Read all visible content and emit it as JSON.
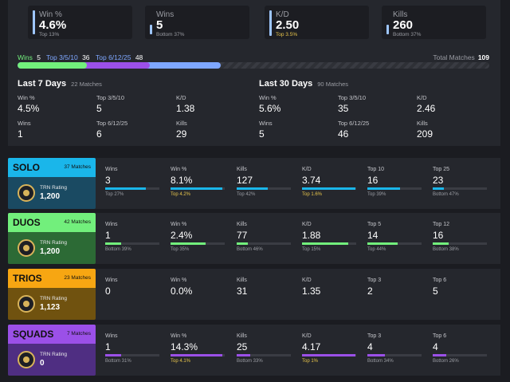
{
  "summary_cards": [
    {
      "label": "Win %",
      "value": "4.6%",
      "sub": "Top 13%"
    },
    {
      "label": "Wins",
      "value": "5",
      "sub": "Bottom 37%"
    },
    {
      "label": "K/D",
      "value": "2.50",
      "sub": "Top 3.5%"
    },
    {
      "label": "Kills",
      "value": "260",
      "sub": "Bottom 37%"
    }
  ],
  "progress": {
    "wins_label": "Wins",
    "wins_value": "5",
    "top3510_label": "Top 3/5/10",
    "top3510_value": "36",
    "top61225_label": "Top 6/12/25",
    "top61225_value": "48",
    "total_label": "Total Matches",
    "total_value": "109",
    "total": 109,
    "wins": 5,
    "top3510": 36,
    "top61225": 48
  },
  "last7": {
    "title": "Last 7 Days",
    "matches": "22 Matches",
    "stats": [
      {
        "label": "Win %",
        "value": "4.5%"
      },
      {
        "label": "Top 3/5/10",
        "value": "5"
      },
      {
        "label": "K/D",
        "value": "1.38"
      },
      {
        "label": "Wins",
        "value": "1"
      },
      {
        "label": "Top 6/12/25",
        "value": "6"
      },
      {
        "label": "Kills",
        "value": "29"
      }
    ]
  },
  "last30": {
    "title": "Last 30 Days",
    "matches": "90 Matches",
    "stats": [
      {
        "label": "Win %",
        "value": "5.6%"
      },
      {
        "label": "Top 3/5/10",
        "value": "35"
      },
      {
        "label": "K/D",
        "value": "2.46"
      },
      {
        "label": "Wins",
        "value": "5"
      },
      {
        "label": "Top 6/12/25",
        "value": "46"
      },
      {
        "label": "Kills",
        "value": "209"
      }
    ]
  },
  "modes": [
    {
      "name": "SOLO",
      "matches": "37 Matches",
      "trn_label": "TRN Rating",
      "trn_value": "1,200",
      "band_color": "#1ab6ea",
      "body_color": "#1a4a62",
      "bar_color": "#1ab6ea",
      "stats": [
        {
          "label": "Wins",
          "value": "3",
          "sub": "Top 27%",
          "gold": false,
          "fill": 0.75
        },
        {
          "label": "Win %",
          "value": "8.1%",
          "sub": "Top 4.2%",
          "gold": true,
          "fill": 0.95
        },
        {
          "label": "Kills",
          "value": "127",
          "sub": "Top 42%",
          "gold": false,
          "fill": 0.58
        },
        {
          "label": "K/D",
          "value": "3.74",
          "sub": "Top 1.6%",
          "gold": true,
          "fill": 0.98
        },
        {
          "label": "Top 10",
          "value": "16",
          "sub": "Top 39%",
          "gold": false,
          "fill": 0.61
        },
        {
          "label": "Top 25",
          "value": "23",
          "sub": "Bottom 47%",
          "gold": false,
          "fill": 0.2
        }
      ]
    },
    {
      "name": "DUOS",
      "matches": "42 Matches",
      "trn_label": "TRN Rating",
      "trn_value": "1,200",
      "band_color": "#72ef7c",
      "body_color": "#2c6a35",
      "bar_color": "#72ef7c",
      "stats": [
        {
          "label": "Wins",
          "value": "1",
          "sub": "Bottom 39%",
          "gold": false,
          "fill": 0.3
        },
        {
          "label": "Win %",
          "value": "2.4%",
          "sub": "Top 35%",
          "gold": false,
          "fill": 0.65
        },
        {
          "label": "Kills",
          "value": "77",
          "sub": "Bottom 46%",
          "gold": false,
          "fill": 0.2
        },
        {
          "label": "K/D",
          "value": "1.88",
          "sub": "Top 15%",
          "gold": false,
          "fill": 0.85
        },
        {
          "label": "Top 5",
          "value": "14",
          "sub": "Top 44%",
          "gold": false,
          "fill": 0.56
        },
        {
          "label": "Top 12",
          "value": "16",
          "sub": "Bottom 38%",
          "gold": false,
          "fill": 0.3
        }
      ]
    },
    {
      "name": "TRIOS",
      "matches": "23 Matches",
      "trn_label": "TRN Rating",
      "trn_value": "1,123",
      "band_color": "#f7a612",
      "body_color": "#70520f",
      "bar_color": "#f7a612",
      "stats": [
        {
          "label": "Wins",
          "value": "0",
          "sub": "",
          "gold": false,
          "fill": 0
        },
        {
          "label": "Win %",
          "value": "0.0%",
          "sub": "",
          "gold": false,
          "fill": 0
        },
        {
          "label": "Kills",
          "value": "31",
          "sub": "",
          "gold": false,
          "fill": 0
        },
        {
          "label": "K/D",
          "value": "1.35",
          "sub": "",
          "gold": false,
          "fill": 0
        },
        {
          "label": "Top 3",
          "value": "2",
          "sub": "",
          "gold": false,
          "fill": 0
        },
        {
          "label": "Top 6",
          "value": "5",
          "sub": "",
          "gold": false,
          "fill": 0
        }
      ]
    },
    {
      "name": "SQUADS",
      "matches": "7 Matches",
      "trn_label": "TRN Rating",
      "trn_value": "0",
      "band_color": "#9b50e8",
      "body_color": "#4f2e82",
      "bar_color": "#9b50e8",
      "stats": [
        {
          "label": "Wins",
          "value": "1",
          "sub": "Bottom 31%",
          "gold": false,
          "fill": 0.3
        },
        {
          "label": "Win %",
          "value": "14.3%",
          "sub": "Top 4.1%",
          "gold": true,
          "fill": 0.96
        },
        {
          "label": "Kills",
          "value": "25",
          "sub": "Bottom 33%",
          "gold": false,
          "fill": 0.25
        },
        {
          "label": "K/D",
          "value": "4.17",
          "sub": "Top 1%",
          "gold": true,
          "fill": 0.99
        },
        {
          "label": "Top 3",
          "value": "4",
          "sub": "Bottom 34%",
          "gold": false,
          "fill": 0.33
        },
        {
          "label": "Top 6",
          "value": "4",
          "sub": "Bottom 26%",
          "gold": false,
          "fill": 0.25
        }
      ]
    }
  ]
}
